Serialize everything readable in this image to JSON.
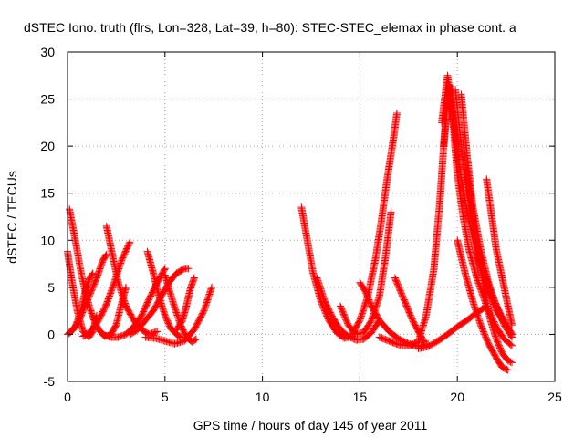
{
  "chart_data": {
    "type": "scatter",
    "title": "dSTEC Iono. truth (flrs, Lon=328, Lat=39, h=80): STEC-STEC_elemax in phase cont. a",
    "xlabel": "GPS time / hours of day 145 of year 2011",
    "ylabel": "dSTEC  / TECUs",
    "xlim": [
      0,
      25
    ],
    "ylim": [
      -5,
      30
    ],
    "xticks": [
      0,
      5,
      10,
      15,
      20,
      25
    ],
    "yticks": [
      -5,
      0,
      5,
      10,
      15,
      20,
      25,
      30
    ],
    "xtick_labels": [
      "0",
      "5",
      "10",
      "15",
      "20",
      "25"
    ],
    "ytick_labels": [
      "-5",
      "0",
      "5",
      "10",
      "15",
      "20",
      "25",
      "30"
    ],
    "grid": true,
    "marker": "+",
    "color": "#ff0000",
    "series": [
      {
        "x": [
          0.0,
          0.2,
          0.5,
          0.8,
          1.1,
          1.3,
          1.5
        ],
        "y": [
          8.8,
          6.0,
          2.5,
          0.3,
          -0.3,
          0.3,
          2.0
        ]
      },
      {
        "x": [
          0.1,
          0.4,
          0.7,
          1.0,
          1.3,
          1.6,
          1.9,
          2.2,
          2.5,
          2.8,
          3.0
        ],
        "y": [
          13.3,
          10.0,
          6.5,
          3.8,
          1.8,
          0.5,
          -0.2,
          -0.1,
          1.0,
          3.5,
          5.0
        ]
      },
      {
        "x": [
          0.0,
          0.3,
          0.6,
          0.9,
          1.2,
          1.5,
          1.8,
          2.0
        ],
        "y": [
          0.0,
          0.5,
          1.5,
          3.0,
          4.5,
          6.0,
          7.8,
          8.5
        ]
      },
      {
        "x": [
          0.1,
          0.4,
          0.7,
          0.9,
          1.1,
          1.3
        ],
        "y": [
          0.2,
          0.8,
          2.5,
          4.5,
          5.8,
          6.5
        ]
      },
      {
        "x": [
          2.0,
          2.3,
          2.6,
          3.0,
          3.4,
          3.8,
          4.2,
          4.6
        ],
        "y": [
          11.5,
          8.5,
          5.5,
          3.0,
          1.5,
          0.5,
          0.0,
          0.3
        ]
      },
      {
        "x": [
          0.8,
          1.2,
          1.6,
          2.0,
          2.4,
          2.8,
          3.2
        ],
        "y": [
          -0.2,
          0.3,
          1.5,
          3.2,
          5.5,
          8.0,
          9.8
        ]
      },
      {
        "x": [
          1.8,
          2.2,
          2.6,
          3.0,
          3.4,
          3.8,
          4.2,
          4.6,
          5.0
        ],
        "y": [
          0.0,
          -0.3,
          -0.3,
          0.0,
          0.8,
          2.0,
          3.8,
          5.5,
          7.0
        ]
      },
      {
        "x": [
          4.1,
          4.4,
          4.7,
          5.0,
          5.3,
          5.6,
          5.8
        ],
        "y": [
          8.8,
          6.5,
          4.0,
          2.0,
          0.6,
          0.0,
          -0.3
        ]
      },
      {
        "x": [
          3.2,
          3.6,
          4.0,
          4.4,
          4.8,
          5.2,
          5.6,
          6.0,
          6.2
        ],
        "y": [
          0.0,
          0.5,
          1.5,
          2.5,
          4.0,
          5.5,
          6.5,
          7.0,
          7.0
        ]
      },
      {
        "x": [
          4.0,
          4.5,
          5.0,
          5.5,
          6.0,
          6.5,
          7.0,
          7.4
        ],
        "y": [
          -0.3,
          -0.4,
          -0.7,
          -1.0,
          -0.7,
          0.5,
          2.5,
          5.0
        ]
      },
      {
        "x": [
          5.0,
          5.4,
          5.8,
          6.1,
          6.4,
          6.6
        ],
        "y": [
          6.3,
          3.5,
          1.0,
          -0.3,
          -0.8,
          -0.5
        ]
      },
      {
        "x": [
          5.6,
          5.9,
          6.1,
          6.3,
          6.5
        ],
        "y": [
          0.5,
          1.5,
          3.0,
          4.8,
          6.0
        ]
      },
      {
        "x": [
          12.0,
          12.3,
          12.6,
          13.0,
          13.4,
          13.8,
          14.2,
          14.6
        ],
        "y": [
          13.5,
          10.0,
          6.5,
          3.5,
          1.5,
          0.2,
          -0.4,
          -0.2
        ]
      },
      {
        "x": [
          12.8,
          13.2,
          13.6,
          14.0,
          14.4,
          14.8,
          15.2,
          15.6,
          16.0
        ],
        "y": [
          6.0,
          3.5,
          1.8,
          0.5,
          -0.2,
          -0.6,
          -0.5,
          0.2,
          1.5
        ]
      },
      {
        "x": [
          14.0,
          14.4,
          14.8,
          15.2,
          15.6,
          16.0,
          16.3,
          16.6
        ],
        "y": [
          3.0,
          1.0,
          0.0,
          0.2,
          1.5,
          4.0,
          8.0,
          13.0
        ]
      },
      {
        "x": [
          14.6,
          15.0,
          15.4,
          15.8,
          16.1,
          16.4,
          16.7,
          16.9
        ],
        "y": [
          0.0,
          1.5,
          4.0,
          8.0,
          12.0,
          16.5,
          20.5,
          23.5
        ]
      },
      {
        "x": [
          15.0,
          15.3,
          15.6,
          16.0,
          16.5,
          17.0,
          17.5,
          18.0,
          18.5
        ],
        "y": [
          5.5,
          4.5,
          3.0,
          1.5,
          0.3,
          -0.5,
          -1.0,
          -1.3,
          -1.0
        ]
      },
      {
        "x": [
          16.8,
          17.1,
          17.4,
          17.7,
          18.0,
          18.3
        ],
        "y": [
          6.0,
          4.5,
          3.0,
          1.5,
          0.3,
          -0.8
        ]
      },
      {
        "x": [
          16.0,
          16.5,
          17.0,
          17.5,
          18.0,
          18.4,
          18.8,
          19.1,
          19.4
        ],
        "y": [
          -0.3,
          -0.7,
          -1.1,
          -1.2,
          -0.8,
          2.0,
          7.0,
          14.0,
          23.0
        ]
      },
      {
        "x": [
          18.0,
          18.5,
          19.0,
          19.5,
          20.0,
          20.5,
          21.0,
          21.5
        ],
        "y": [
          -1.5,
          -1.3,
          -0.7,
          0.0,
          0.8,
          1.5,
          2.3,
          3.0
        ]
      },
      {
        "x": [
          19.2,
          19.5,
          19.8,
          20.0,
          20.3,
          20.6,
          21.0,
          21.5,
          22.0,
          22.4,
          22.8
        ],
        "y": [
          22.5,
          27.5,
          22.0,
          17.0,
          12.5,
          9.0,
          6.0,
          3.0,
          0.8,
          -0.5,
          -1.2
        ]
      },
      {
        "x": [
          19.3,
          19.6,
          19.9,
          20.2,
          20.6,
          21.0,
          21.5,
          22.0,
          22.5,
          22.8
        ],
        "y": [
          20.0,
          26.5,
          21.0,
          16.5,
          12.0,
          8.5,
          5.0,
          2.5,
          1.0,
          0.0
        ]
      },
      {
        "x": [
          19.9,
          20.2,
          20.5,
          20.9,
          21.3,
          21.8,
          22.3,
          22.8
        ],
        "y": [
          26.0,
          20.0,
          15.0,
          10.5,
          7.0,
          4.0,
          1.8,
          0.0
        ]
      },
      {
        "x": [
          20.2,
          20.5,
          20.8,
          21.2,
          21.6,
          22.0,
          22.4,
          22.8
        ],
        "y": [
          25.5,
          19.0,
          13.5,
          9.0,
          5.5,
          3.0,
          1.0,
          -0.3
        ]
      },
      {
        "x": [
          20.5,
          20.8,
          21.1,
          21.4,
          21.7,
          22.0,
          22.3,
          22.6,
          22.8
        ],
        "y": [
          17.5,
          12.5,
          8.0,
          4.5,
          1.5,
          -0.5,
          -2.0,
          -2.8,
          -3.0
        ]
      },
      {
        "x": [
          20.0,
          20.4,
          20.8,
          21.2,
          21.6,
          22.0,
          22.3,
          22.6
        ],
        "y": [
          10.0,
          6.5,
          3.5,
          1.0,
          -1.0,
          -2.5,
          -3.5,
          -3.8
        ]
      },
      {
        "x": [
          21.5,
          21.8,
          22.0,
          22.3,
          22.6,
          22.8
        ],
        "y": [
          16.5,
          12.0,
          9.0,
          6.0,
          3.0,
          1.0
        ]
      }
    ]
  }
}
